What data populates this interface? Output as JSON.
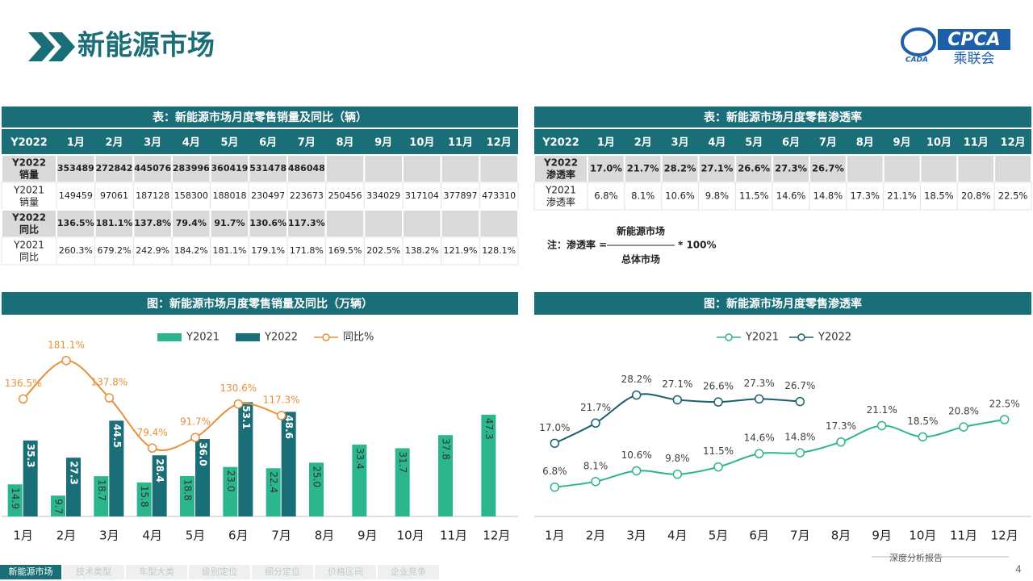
{
  "header": {
    "title": "新能源市场",
    "logo": {
      "mark": "CPCA",
      "name": "乘联会",
      "sub": "CADA"
    }
  },
  "tables": [
    {
      "title": "表：新能源市场月度零售销量及同比（辆）",
      "header": [
        "Y2022",
        "1月",
        "2月",
        "3月",
        "4月",
        "5月",
        "6月",
        "7月",
        "8月",
        "9月",
        "10月",
        "11月",
        "12月"
      ],
      "rows": [
        {
          "label": [
            "Y2022",
            "销量"
          ],
          "cells": [
            "353489",
            "272842",
            "445076",
            "283996",
            "360419",
            "531478",
            "486048"
          ]
        },
        {
          "label": [
            "Y2021",
            "销量"
          ],
          "cells": [
            "149459",
            "97061",
            "187128",
            "158300",
            "188018",
            "230497",
            "223673",
            "250456",
            "334029",
            "317104",
            "377897",
            "473310"
          ]
        },
        {
          "label": [
            "Y2022",
            "同比"
          ],
          "cells": [
            "136.5%",
            "181.1%",
            "137.8%",
            "79.4%",
            "91.7%",
            "130.6%",
            "117.3%"
          ]
        },
        {
          "label": [
            "Y2021",
            "同比"
          ],
          "cells": [
            "260.3%",
            "679.2%",
            "242.9%",
            "184.2%",
            "181.1%",
            "179.1%",
            "171.8%",
            "169.5%",
            "202.5%",
            "138.2%",
            "121.9%",
            "128.1%"
          ]
        }
      ]
    },
    {
      "title": "表：新能源市场月度零售渗透率",
      "header": [
        "Y2022",
        "1月",
        "2月",
        "3月",
        "4月",
        "5月",
        "6月",
        "7月",
        "8月",
        "9月",
        "10月",
        "11月",
        "12月"
      ],
      "rows": [
        {
          "label": [
            "Y2022",
            "渗透率"
          ],
          "cells": [
            "17.0%",
            "21.7%",
            "28.2%",
            "27.1%",
            "26.6%",
            "27.3%",
            "26.7%"
          ]
        },
        {
          "label": [
            "Y2021",
            "渗透率"
          ],
          "cells": [
            "6.8%",
            "8.1%",
            "10.6%",
            "9.8%",
            "11.5%",
            "14.6%",
            "14.8%",
            "17.3%",
            "21.1%",
            "18.5%",
            "20.8%",
            "22.5%"
          ]
        }
      ]
    }
  ],
  "formula": {
    "prefix": "注：渗透率 =",
    "numerator": "新能源市场",
    "denominator": "总体市场",
    "suffix": "* 100%"
  },
  "chart_data": [
    {
      "type": "bar",
      "title": "图：新能源市场月度零售销量及同比（万辆）",
      "categories": [
        "1月",
        "2月",
        "3月",
        "4月",
        "5月",
        "6月",
        "7月",
        "8月",
        "9月",
        "10月",
        "11月",
        "12月"
      ],
      "ylim": [
        0,
        90
      ],
      "y2lim": [
        0,
        225
      ],
      "series": [
        {
          "name": "Y2021",
          "color": "#2bb68e",
          "values": [
            14.9,
            9.7,
            18.7,
            15.8,
            18.8,
            23.0,
            22.4,
            25.0,
            33.4,
            31.7,
            37.8,
            47.3
          ],
          "value_labels": [
            "14.9",
            "9.7",
            "18.7",
            "15.8",
            "18.8",
            "23.0",
            "22.4",
            "25.0",
            "33.4",
            "31.7",
            "37.8",
            "47.3"
          ]
        },
        {
          "name": "Y2022",
          "color": "#1a6e77",
          "values": [
            35.3,
            27.3,
            44.5,
            28.4,
            36.0,
            53.1,
            48.6,
            null,
            null,
            null,
            null,
            null
          ],
          "value_labels": [
            "35.3",
            "27.3",
            "44.5",
            "28.4",
            "36.0",
            "53.1",
            "48.6",
            null,
            null,
            null,
            null,
            null
          ]
        },
        {
          "name": "同比%",
          "type": "line",
          "axis": "y2",
          "color": "#e8903a",
          "values": [
            136.5,
            181.1,
            137.8,
            79.4,
            91.7,
            130.6,
            117.3,
            null,
            null,
            null,
            null,
            null
          ],
          "value_labels": [
            "136.5%",
            "181.1%",
            "137.8%",
            "79.4%",
            "91.7%",
            "130.6%",
            "117.3%",
            null,
            null,
            null,
            null,
            null
          ]
        }
      ]
    },
    {
      "type": "line",
      "title": "图：新能源市场月度零售渗透率",
      "categories": [
        "1月",
        "2月",
        "3月",
        "4月",
        "5月",
        "6月",
        "7月",
        "8月",
        "9月",
        "10月",
        "11月",
        "12月"
      ],
      "ylim": [
        0,
        45
      ],
      "series": [
        {
          "name": "Y2021",
          "color": "#2bb68e",
          "values": [
            6.8,
            8.1,
            10.6,
            9.8,
            11.5,
            14.6,
            14.8,
            17.3,
            21.1,
            18.5,
            20.8,
            22.5
          ],
          "value_labels": [
            "6.8%",
            "8.1%",
            "10.6%",
            "9.8%",
            "11.5%",
            "14.6%",
            "14.8%",
            "17.3%",
            "21.1%",
            "18.5%",
            "20.8%",
            "22.5%"
          ]
        },
        {
          "name": "Y2022",
          "color": "#1a5f6e",
          "values": [
            17.0,
            21.7,
            28.2,
            27.1,
            26.6,
            27.3,
            26.7,
            null,
            null,
            null,
            null,
            null
          ],
          "value_labels": [
            "17.0%",
            "21.7%",
            "28.2%",
            "27.1%",
            "26.6%",
            "27.3%",
            "26.7%",
            null,
            null,
            null,
            null,
            null
          ]
        }
      ]
    }
  ],
  "footer": {
    "tabs": [
      "新能源市场",
      "技术类型",
      "车型大类",
      "级别定位",
      "细分定位",
      "价格区间",
      "企业竞争"
    ],
    "report": "深度分析报告",
    "page": "4"
  }
}
